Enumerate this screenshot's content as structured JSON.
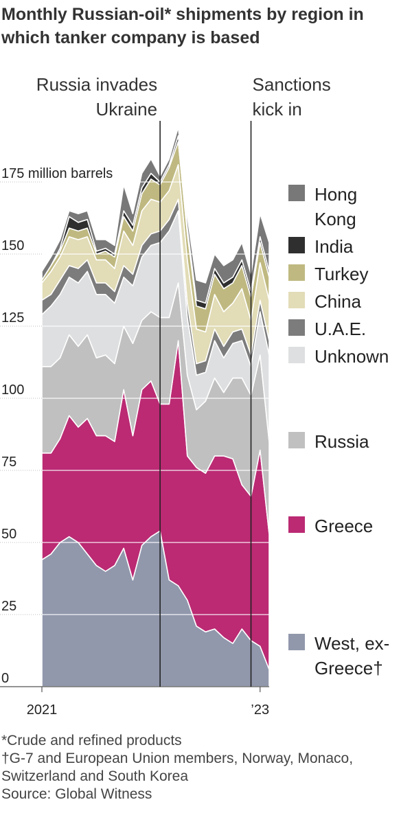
{
  "title": "Monthly Russian-oil* shipments by region in which tanker company is based",
  "notes": [
    "*Crude and refined products",
    "†G-7 and European Union members, Norway, Monaco,",
    "Switzerland and South Korea",
    "Source: Global Witness"
  ],
  "chart_data": {
    "type": "area",
    "stacked": true,
    "x": [
      "Jan 2021",
      "Feb 2021",
      "Mar 2021",
      "Apr 2021",
      "May 2021",
      "Jun 2021",
      "Jul 2021",
      "Aug 2021",
      "Sep 2021",
      "Oct 2021",
      "Nov 2021",
      "Dec 2021",
      "Jan 2022",
      "Feb 2022",
      "Mar 2022",
      "Apr 2022",
      "May 2022",
      "Jun 2022",
      "Jul 2022",
      "Aug 2022",
      "Sep 2022",
      "Oct 2022",
      "Nov 2022",
      "Dec 2022",
      "Jan 2023",
      "Feb 2023"
    ],
    "x_tick_labels": [
      {
        "x": "Jan 2021",
        "label": "2021"
      },
      {
        "x": "Jan 2023",
        "label": "’23"
      }
    ],
    "y_ticks": [
      {
        "value": 0,
        "label": "0"
      },
      {
        "value": 25,
        "label": "25"
      },
      {
        "value": 50,
        "label": "50"
      },
      {
        "value": 75,
        "label": "75"
      },
      {
        "value": 100,
        "label": "100"
      },
      {
        "value": 125,
        "label": "125"
      },
      {
        "value": 150,
        "label": "150"
      },
      {
        "value": 175,
        "label": "175 million barrels"
      }
    ],
    "ylim": [
      0,
      185
    ],
    "grid": true,
    "legend_position": "right",
    "series": [
      {
        "name": "West, ex-Greece†",
        "color": "#9198ac",
        "values": [
          44,
          46,
          50,
          52,
          50,
          46,
          42,
          40,
          42,
          48,
          37,
          49,
          52,
          54,
          37,
          35,
          30,
          21,
          19,
          20,
          17,
          15,
          20,
          16,
          14,
          6
        ]
      },
      {
        "name": "Greece",
        "color": "#bb2a73",
        "values": [
          37,
          35,
          36,
          42,
          40,
          47,
          45,
          47,
          43,
          55,
          50,
          54,
          54,
          44,
          61,
          85,
          50,
          55,
          55,
          60,
          63,
          64,
          50,
          50,
          68,
          47
        ]
      },
      {
        "name": "Russia",
        "color": "#c0c0c0",
        "values": [
          30,
          30,
          28,
          28,
          28,
          29,
          27,
          28,
          27,
          22,
          32,
          24,
          24,
          30,
          30,
          20,
          28,
          20,
          25,
          27,
          22,
          28,
          37,
          35,
          33,
          32
        ]
      },
      {
        "name": "Unknown",
        "color": "#dedfe0",
        "values": [
          18,
          21,
          22,
          20,
          22,
          22,
          22,
          21,
          21,
          17,
          20,
          22,
          23,
          26,
          30,
          25,
          20,
          12,
          10,
          13,
          12,
          12,
          13,
          10,
          15,
          30
        ]
      },
      {
        "name": "U.A.E.",
        "color": "#7c7c7c",
        "values": [
          5,
          4,
          5,
          4,
          5,
          4,
          4,
          4,
          4,
          4,
          4,
          4,
          4,
          4,
          4,
          4,
          5,
          4,
          4,
          4,
          4,
          4,
          4,
          4,
          4,
          5
        ]
      },
      {
        "name": "China",
        "color": "#e2dcb7",
        "values": [
          6,
          8,
          8,
          10,
          10,
          8,
          8,
          8,
          8,
          12,
          10,
          12,
          12,
          10,
          10,
          12,
          15,
          12,
          10,
          12,
          12,
          10,
          14,
          12,
          13,
          14
        ]
      },
      {
        "name": "Turkey",
        "color": "#bfb981",
        "values": [
          1,
          2,
          2,
          3,
          3,
          3,
          2,
          3,
          4,
          5,
          5,
          6,
          7,
          6,
          8,
          8,
          9,
          8,
          8,
          7,
          8,
          7,
          8,
          8,
          7,
          8
        ]
      },
      {
        "name": "India",
        "color": "#2f2f2f",
        "values": [
          0,
          0,
          1,
          4,
          3,
          3,
          1,
          1,
          1,
          2,
          2,
          2,
          2,
          1,
          1,
          2,
          2,
          2,
          2,
          2,
          2,
          2,
          2,
          2,
          2,
          2
        ]
      },
      {
        "name": "Hong Kong",
        "color": "#787878",
        "values": [
          3,
          3,
          3,
          2,
          3,
          3,
          4,
          3,
          3,
          9,
          4,
          5,
          5,
          2,
          2,
          3,
          4,
          7,
          7,
          5,
          6,
          6,
          6,
          6,
          8,
          10
        ]
      }
    ],
    "annotations": [
      {
        "x": "Feb 2022",
        "label_lines": [
          "Russia invades",
          "Ukraine"
        ]
      },
      {
        "x": "Dec 2022",
        "label_lines": [
          "Sanctions",
          "kick in"
        ]
      }
    ],
    "legend_entries": [
      {
        "series": "Hong Kong",
        "lines": [
          "Hong",
          "Kong"
        ]
      },
      {
        "series": "India",
        "lines": [
          "India"
        ]
      },
      {
        "series": "Turkey",
        "lines": [
          "Turkey"
        ]
      },
      {
        "series": "China",
        "lines": [
          "China"
        ]
      },
      {
        "series": "U.A.E.",
        "lines": [
          "U.A.E."
        ]
      },
      {
        "series": "Unknown",
        "lines": [
          "Unknown"
        ]
      },
      {
        "series": "Russia",
        "lines": [
          "Russia"
        ]
      },
      {
        "series": "Greece",
        "lines": [
          "Greece"
        ]
      },
      {
        "series": "West, ex-Greece†",
        "lines": [
          "West, ex-",
          "Greece†"
        ]
      }
    ]
  }
}
